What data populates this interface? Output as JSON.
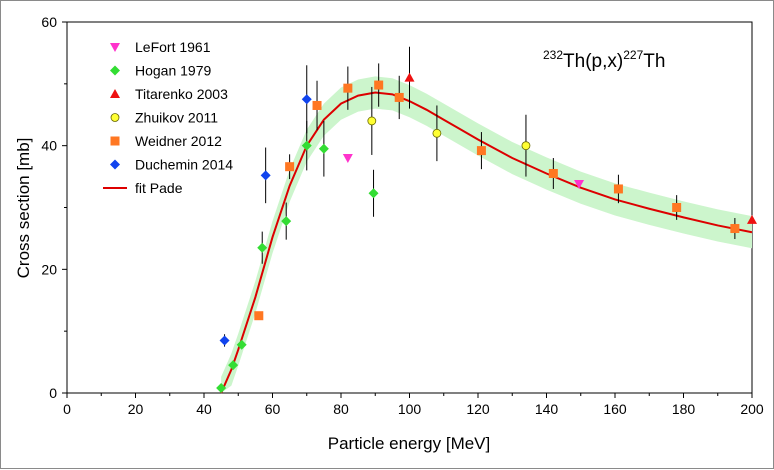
{
  "chart_data": {
    "type": "scatter",
    "title": "232Th(p,x)227Th",
    "reaction": {
      "iso1": "232",
      "mid": "Th(p,x)",
      "iso2": "227",
      "end": "Th"
    },
    "xlabel": "Particle energy [MeV]",
    "ylabel": "Cross section [mb]",
    "xlim": [
      0,
      200
    ],
    "ylim": [
      0,
      60
    ],
    "xticks": [
      "0",
      "20",
      "40",
      "60",
      "80",
      "100",
      "120",
      "140",
      "160",
      "180",
      "200"
    ],
    "yticks": [
      "0",
      "20",
      "40",
      "60"
    ],
    "legend_position": "top-left",
    "series": [
      {
        "name": "LeFort 1961",
        "marker": "triangle-down",
        "color": "#ff33cc",
        "points": [
          [
            82,
            38.0,
            0
          ],
          [
            149.5,
            33.8,
            0
          ]
        ]
      },
      {
        "name": "Hogan 1979",
        "marker": "diamond",
        "color": "#33dd33",
        "points": [
          [
            45,
            0.8,
            0
          ],
          [
            48.5,
            4.5,
            0
          ],
          [
            51,
            7.8,
            0
          ],
          [
            57,
            23.5,
            2.6
          ],
          [
            64,
            27.8,
            3.0
          ],
          [
            70,
            40.0,
            4.0
          ],
          [
            75,
            39.5,
            4.5
          ],
          [
            89.5,
            32.3,
            3.8
          ]
        ]
      },
      {
        "name": "Titarenko 2003",
        "marker": "triangle-up",
        "color": "#ee1111",
        "points": [
          [
            100,
            51.0,
            5.0
          ],
          [
            200,
            28.0,
            0
          ]
        ]
      },
      {
        "name": "Zhuikov 2011",
        "marker": "circle",
        "color": "#ffff33",
        "points": [
          [
            89,
            44.0,
            5.5
          ],
          [
            108,
            42.0,
            4.5
          ],
          [
            134,
            40.0,
            5.0
          ]
        ]
      },
      {
        "name": "Weidner 2012",
        "marker": "square",
        "color": "#ff7722",
        "points": [
          [
            56,
            12.5,
            0
          ],
          [
            65,
            36.6,
            2.0
          ],
          [
            73,
            46.5,
            4.0
          ],
          [
            82,
            49.3,
            3.5
          ],
          [
            91,
            49.8,
            3.5
          ],
          [
            97,
            47.8,
            3.5
          ],
          [
            121,
            39.2,
            3.0
          ],
          [
            142,
            35.5,
            2.5
          ],
          [
            161,
            33.0,
            2.3
          ],
          [
            178,
            30.0,
            2.0
          ],
          [
            195,
            26.6,
            1.7
          ]
        ]
      },
      {
        "name": "Duchemin 2014",
        "marker": "diamond",
        "color": "#1144ee",
        "points": [
          [
            46,
            8.5,
            1.0
          ],
          [
            58,
            35.2,
            4.5
          ],
          [
            70,
            47.5,
            5.5
          ]
        ]
      }
    ],
    "fit": {
      "name": "fit Pade",
      "color": "#dd0000",
      "band_color": "#ccf5cc",
      "band_halfwidth": 2.6,
      "points": [
        [
          45,
          0
        ],
        [
          48,
          3.8
        ],
        [
          50,
          7.0
        ],
        [
          55,
          15.5
        ],
        [
          60,
          25.2
        ],
        [
          65,
          33.5
        ],
        [
          70,
          40.0
        ],
        [
          75,
          44.2
        ],
        [
          80,
          46.8
        ],
        [
          85,
          48.1
        ],
        [
          90,
          48.6
        ],
        [
          95,
          48.3
        ],
        [
          100,
          47.2
        ],
        [
          105,
          45.8
        ],
        [
          110,
          44.2
        ],
        [
          120,
          41.0
        ],
        [
          130,
          38.0
        ],
        [
          140,
          35.5
        ],
        [
          150,
          33.2
        ],
        [
          160,
          31.3
        ],
        [
          170,
          29.8
        ],
        [
          180,
          28.4
        ],
        [
          190,
          27.1
        ],
        [
          200,
          26.0
        ]
      ]
    }
  }
}
